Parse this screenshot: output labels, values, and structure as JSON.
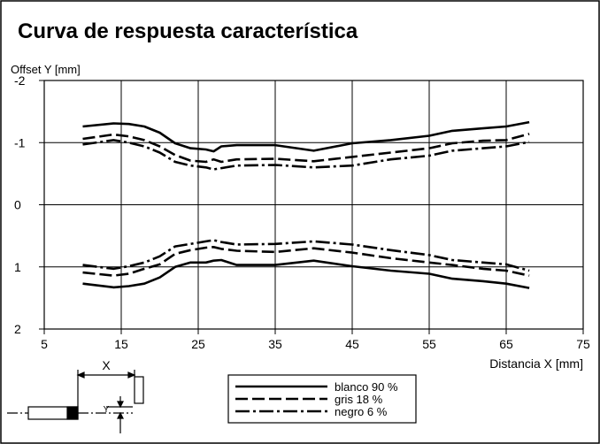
{
  "chart_data": {
    "type": "line",
    "title": "Curva de respuesta característica",
    "ylabel": "Offset Y [mm]",
    "xlabel": "Distancia X [mm]",
    "annotations": [
      "X",
      "Y"
    ],
    "xlim": [
      5,
      75
    ],
    "xticks": [
      5,
      15,
      25,
      35,
      45,
      55,
      65,
      75
    ],
    "ylim": [
      -2,
      2
    ],
    "yticks": [
      -2,
      -1,
      0,
      1,
      2
    ],
    "y_inverted": true,
    "grid": true,
    "x": [
      10,
      14,
      16,
      18,
      20,
      22,
      24,
      26,
      27,
      28,
      30,
      35,
      40,
      45,
      50,
      55,
      58,
      62,
      65,
      68
    ],
    "series": [
      {
        "name": "blanco 90 %",
        "color": "#000000",
        "dash": "solid",
        "values": [
          -1.26,
          -1.31,
          -1.3,
          -1.26,
          -1.16,
          -0.99,
          -0.91,
          -0.89,
          -0.86,
          -0.94,
          -0.96,
          -0.96,
          -0.87,
          -0.99,
          -1.04,
          -1.11,
          -1.19,
          -1.23,
          -1.26,
          -1.33
        ],
        "lower_values": [
          1.27,
          1.33,
          1.31,
          1.27,
          1.17,
          1.0,
          0.93,
          0.93,
          0.9,
          0.89,
          0.97,
          0.97,
          0.9,
          0.99,
          1.06,
          1.11,
          1.19,
          1.23,
          1.27,
          1.34
        ]
      },
      {
        "name": "gris 18 %",
        "color": "#000000",
        "dash": "dashed",
        "values": [
          -1.06,
          -1.13,
          -1.1,
          -1.04,
          -0.94,
          -0.8,
          -0.71,
          -0.69,
          -0.73,
          -0.69,
          -0.73,
          -0.74,
          -0.7,
          -0.77,
          -0.84,
          -0.91,
          -0.99,
          -1.03,
          -1.04,
          -1.14
        ],
        "lower_values": [
          1.09,
          1.14,
          1.11,
          1.03,
          0.96,
          0.79,
          0.73,
          0.69,
          0.68,
          0.71,
          0.74,
          0.76,
          0.7,
          0.77,
          0.86,
          0.93,
          0.97,
          1.03,
          1.06,
          1.14
        ]
      },
      {
        "name": "negro 6 %",
        "color": "#000000",
        "dash": "dashdot",
        "values": [
          -0.97,
          -1.04,
          -1.0,
          -0.94,
          -0.84,
          -0.69,
          -0.63,
          -0.6,
          -0.57,
          -0.59,
          -0.63,
          -0.64,
          -0.6,
          -0.63,
          -0.73,
          -0.79,
          -0.87,
          -0.91,
          -0.94,
          -1.01
        ],
        "lower_values": [
          0.97,
          1.03,
          0.99,
          0.93,
          0.83,
          0.67,
          0.63,
          0.59,
          0.57,
          0.6,
          0.64,
          0.63,
          0.59,
          0.64,
          0.73,
          0.81,
          0.89,
          0.93,
          0.96,
          1.06
        ]
      }
    ]
  }
}
